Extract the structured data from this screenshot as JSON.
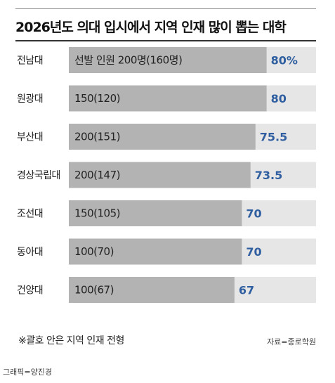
{
  "chart_data": {
    "type": "bar",
    "orientation": "horizontal",
    "title": "2026년도 의대 입시에서 지역 인재 많이 뽑는 대학",
    "categories": [
      "전남대",
      "원광대",
      "부산대",
      "경상국립대",
      "조선대",
      "동아대",
      "건양대"
    ],
    "values": [
      80,
      80,
      75.5,
      73.5,
      70,
      70,
      67
    ],
    "value_labels": [
      "80%",
      "80",
      "75.5",
      "73.5",
      "70",
      "70",
      "67"
    ],
    "bar_labels": [
      "선발 인원 200명(160명)",
      "150(120)",
      "200(151)",
      "200(147)",
      "150(105)",
      "100(70)",
      "100(67)"
    ],
    "xlim": [
      0,
      100
    ],
    "grid": false,
    "legend": "none",
    "colors": {
      "bar": "#b3b3b3",
      "track": "#e6e6e6",
      "value_text": "#2f5fa0"
    }
  },
  "note": "※괄호 안은 지역 인재 전형",
  "source": "자료=종로학원",
  "credit": "그래픽=양진경"
}
